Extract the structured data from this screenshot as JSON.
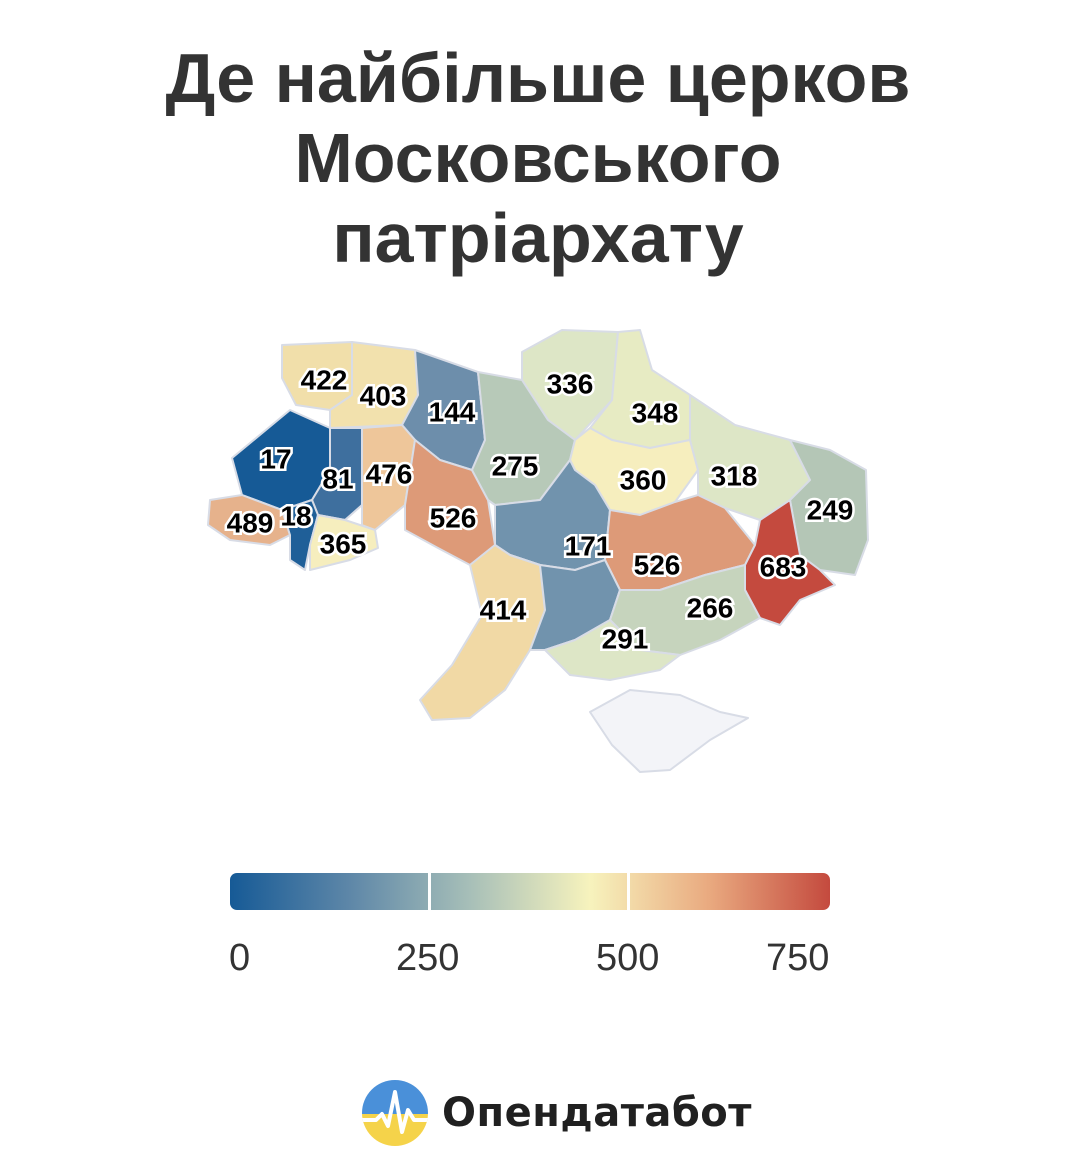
{
  "title": {
    "line1": "Де найбільше церков",
    "line2": "Московського",
    "line3": "патріархату"
  },
  "map": {
    "colors": {
      "deep_blue": "#165a96",
      "steel_blue": "#6d8eab",
      "blue_grey": "#7193ad",
      "sage": "#b7c9b8",
      "light_green": "#dde6c6",
      "cream": "#f3e9b6",
      "pale_yellow": "#f6eebe",
      "sand": "#f1d29a",
      "peach": "#eec69a",
      "terracotta": "#dd9a78",
      "red": "#c44a3e",
      "crimea": "#f3f4f8"
    },
    "regions": [
      {
        "name": "Волинська",
        "value": 422,
        "label": "422",
        "color": "#f1dfaa"
      },
      {
        "name": "Рівненська",
        "value": 403,
        "label": "403",
        "color": "#f2e1ad"
      },
      {
        "name": "Житомирська",
        "value": 144,
        "label": "144",
        "color": "#6d8eab"
      },
      {
        "name": "Київ",
        "value": 275,
        "label": "275",
        "color": "#b7c9b8"
      },
      {
        "name": "Чернігівська",
        "value": 336,
        "label": "336",
        "color": "#dde6c6"
      },
      {
        "name": "Сумська",
        "value": 348,
        "label": "348",
        "color": "#e7ebc3"
      },
      {
        "name": "Львівська",
        "value": 17,
        "label": "17",
        "color": "#165a96"
      },
      {
        "name": "Тернопільська",
        "value": 81,
        "label": "81",
        "color": "#3e6f9e"
      },
      {
        "name": "Хмельницька",
        "value": 476,
        "label": "476",
        "color": "#eec69a"
      },
      {
        "name": "Вінницька",
        "value": 526,
        "label": "526",
        "color": "#dd9a78"
      },
      {
        "name": "Київська",
        "value": 275,
        "label": "275",
        "color": "#b7c9b8"
      },
      {
        "name": "Полтавська",
        "value": 360,
        "label": "360",
        "color": "#f6eebe"
      },
      {
        "name": "Харківська",
        "value": 318,
        "label": "318",
        "color": "#dde6c6"
      },
      {
        "name": "Луганська",
        "value": 249,
        "label": "249",
        "color": "#b4c6b6"
      },
      {
        "name": "Закарпатська",
        "value": 489,
        "label": "489",
        "color": "#e6b28c"
      },
      {
        "name": "Івано-Франківська",
        "value": 18,
        "label": "18",
        "color": "#1f5f98"
      },
      {
        "name": "Чернівецька",
        "value": 365,
        "label": "365",
        "color": "#f6eebe"
      },
      {
        "name": "Черкаська",
        "value": 171,
        "label": "171",
        "color": "#7193ad"
      },
      {
        "name": "Дніпропетровська",
        "value": 526,
        "label": "526",
        "color": "#dd9a78"
      },
      {
        "name": "Донецька",
        "value": 683,
        "label": "683",
        "color": "#c44a3e"
      },
      {
        "name": "Кіровоградська",
        "value": 171,
        "label": "171",
        "color": "#7193ad"
      },
      {
        "name": "Одеська",
        "value": 414,
        "label": "414",
        "color": "#f1d9a5"
      },
      {
        "name": "Миколаївська",
        "value": 171,
        "label": "171",
        "color": "#7193ad"
      },
      {
        "name": "Запорізька",
        "value": 266,
        "label": "266",
        "color": "#c6d4bd"
      },
      {
        "name": "Херсонська",
        "value": 291,
        "label": "291",
        "color": "#dde6c6"
      },
      {
        "name": "Крим",
        "value": null,
        "label": "",
        "color": "#f3f4f8"
      }
    ]
  },
  "legend": {
    "min": 0,
    "max": 750,
    "gradient": [
      "#165a96",
      "#5e87a8",
      "#a7bfb8",
      "#f7f3bd",
      "#e9a97f",
      "#c44a3e"
    ],
    "ticks": [
      "0",
      "250",
      "500",
      "750"
    ]
  },
  "brand": {
    "name": "Опендатабот",
    "logo_icon": "opendatabot-logo-icon",
    "logo_colors": [
      "#4a90d9",
      "#f5d34a"
    ]
  }
}
